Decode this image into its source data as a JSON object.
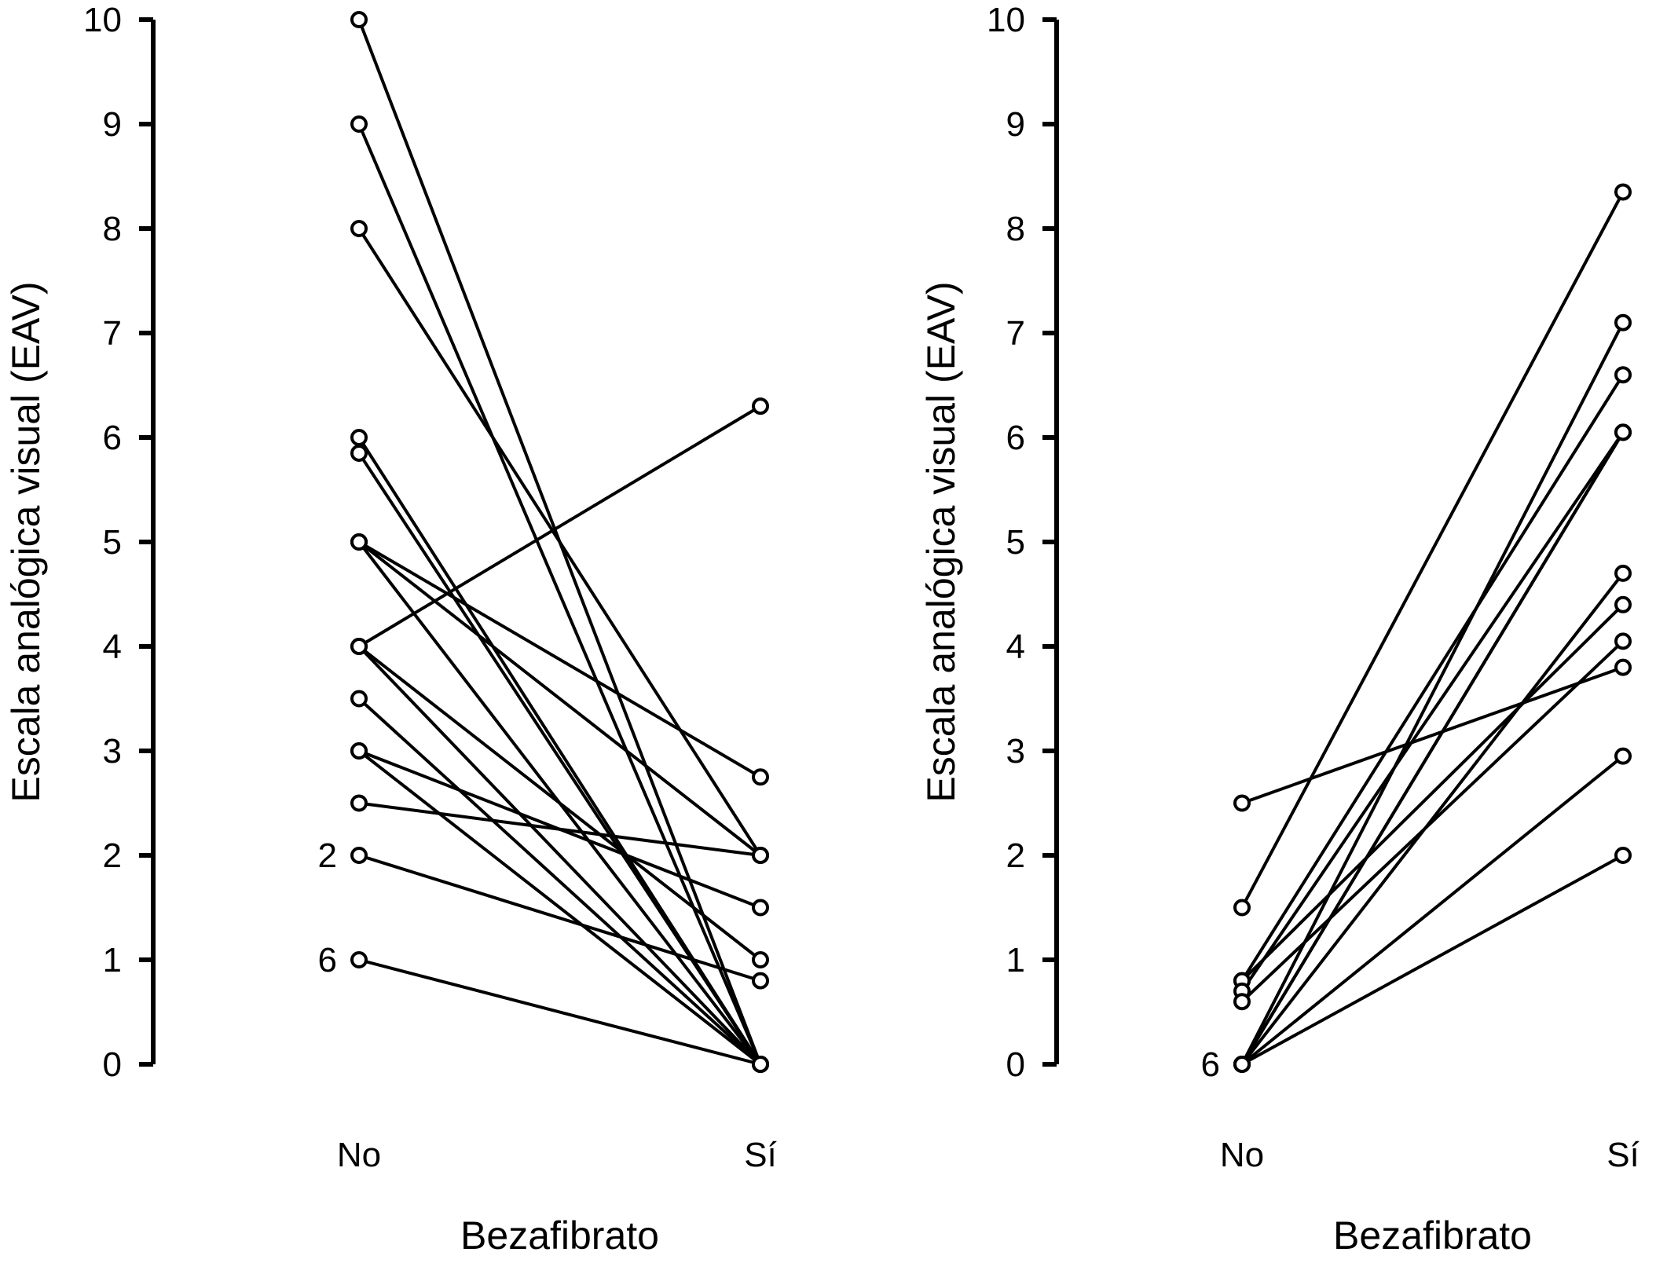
{
  "chart_data": [
    {
      "type": "line",
      "ylabel": "Escala analógica visual (EAV)",
      "xlabel": "Bezafibrato",
      "categories": [
        "No",
        "Sí"
      ],
      "ylim": [
        0,
        10
      ],
      "yticks": [
        "0",
        "1",
        "2",
        "3",
        "4",
        "5",
        "6",
        "7",
        "8",
        "9",
        "10"
      ],
      "series": [
        {
          "values": [
            10.0,
            0.0
          ]
        },
        {
          "values": [
            9.0,
            0.0
          ]
        },
        {
          "values": [
            8.0,
            2.0
          ]
        },
        {
          "values": [
            6.0,
            0.0
          ]
        },
        {
          "values": [
            5.85,
            0.0
          ]
        },
        {
          "values": [
            5.0,
            2.75
          ]
        },
        {
          "values": [
            5.0,
            2.0
          ]
        },
        {
          "values": [
            5.0,
            0.0
          ]
        },
        {
          "values": [
            4.0,
            6.3
          ]
        },
        {
          "values": [
            4.0,
            1.0
          ]
        },
        {
          "values": [
            4.0,
            0.0
          ]
        },
        {
          "values": [
            3.5,
            0.0
          ]
        },
        {
          "values": [
            3.0,
            1.5
          ]
        },
        {
          "values": [
            3.0,
            0.0
          ]
        },
        {
          "values": [
            2.5,
            2.0
          ]
        },
        {
          "values": [
            2.0,
            0.8
          ]
        },
        {
          "values": [
            1.0,
            0.0
          ]
        }
      ],
      "annotations": [
        {
          "text": "2",
          "category": "No",
          "y": 2.0
        },
        {
          "text": "6",
          "category": "No",
          "y": 1.0
        }
      ]
    },
    {
      "type": "line",
      "ylabel": "Escala analógica visual (EAV)",
      "xlabel": "Bezafibrato",
      "categories": [
        "No",
        "Sí"
      ],
      "ylim": [
        0,
        10
      ],
      "yticks": [
        "0",
        "1",
        "2",
        "3",
        "4",
        "5",
        "6",
        "7",
        "8",
        "9",
        "10"
      ],
      "series": [
        {
          "values": [
            2.5,
            3.8
          ]
        },
        {
          "values": [
            1.5,
            8.35
          ]
        },
        {
          "values": [
            0.8,
            6.6
          ]
        },
        {
          "values": [
            0.8,
            4.4
          ]
        },
        {
          "values": [
            0.7,
            6.05
          ]
        },
        {
          "values": [
            0.6,
            4.05
          ]
        },
        {
          "values": [
            0.0,
            7.1
          ]
        },
        {
          "values": [
            0.0,
            6.05
          ]
        },
        {
          "values": [
            0.0,
            6.05
          ]
        },
        {
          "values": [
            0.0,
            4.7
          ]
        },
        {
          "values": [
            0.0,
            2.95
          ]
        },
        {
          "values": [
            0.0,
            2.0
          ]
        }
      ],
      "annotations": [
        {
          "text": "6",
          "category": "No",
          "y": 0.0
        }
      ]
    }
  ]
}
